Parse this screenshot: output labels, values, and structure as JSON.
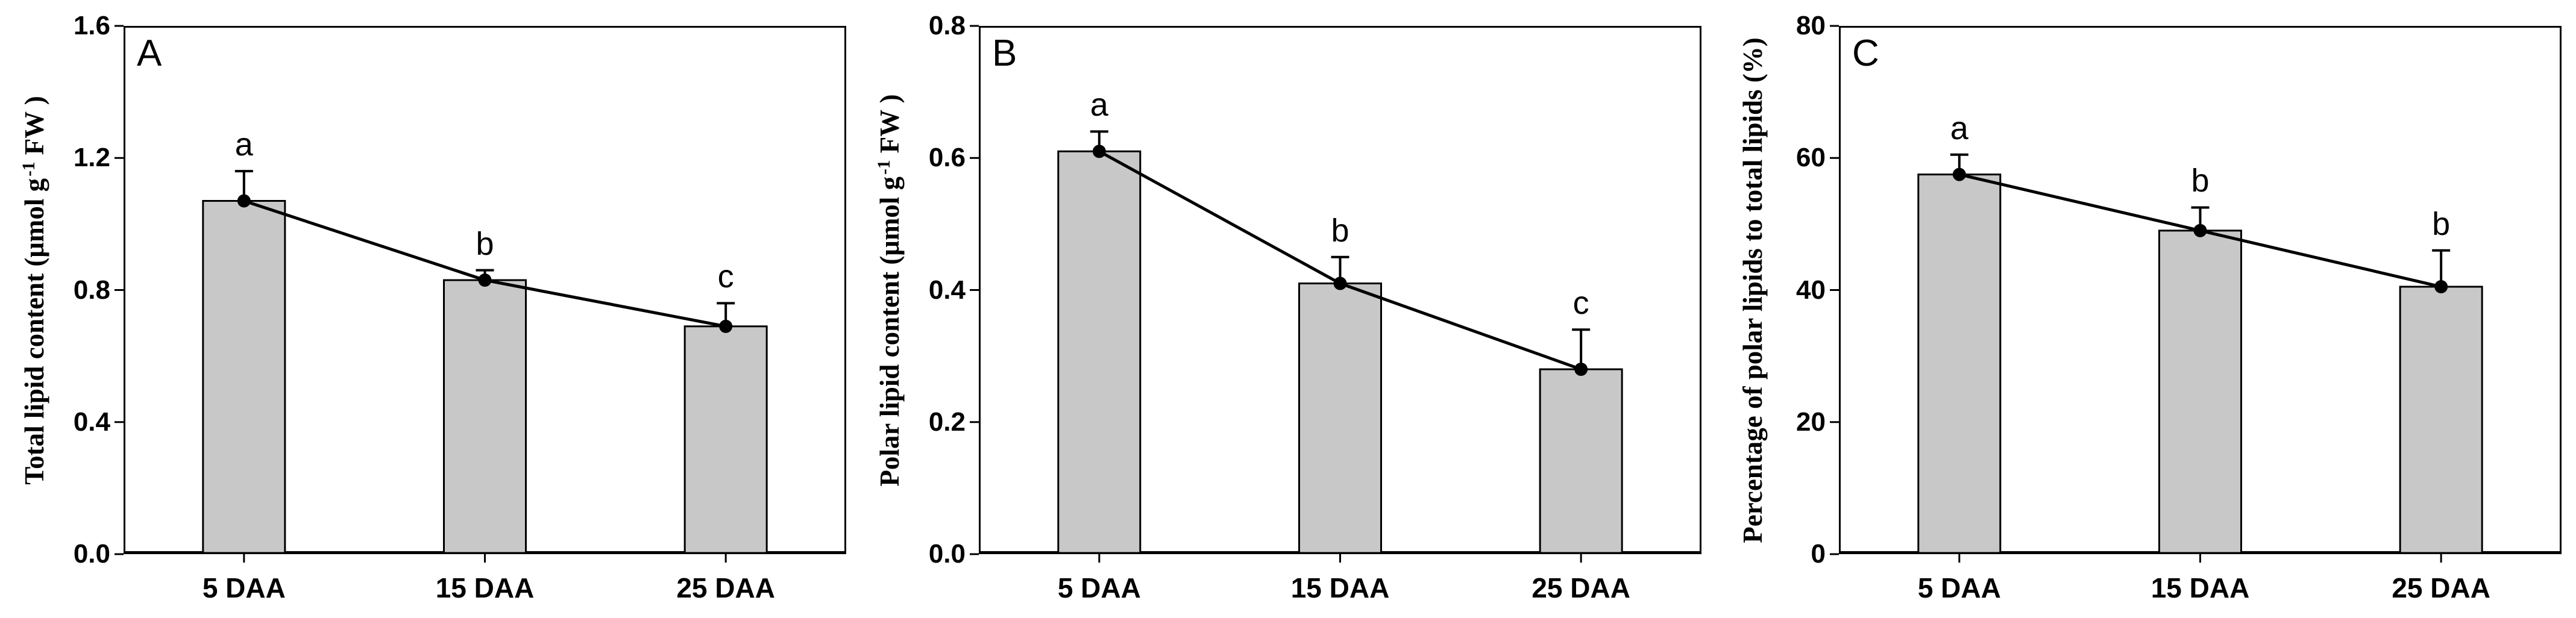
{
  "figure": {
    "background": "#ffffff",
    "bar_fill": "#c8c8c8",
    "bar_border": "#000000",
    "line_color": "#000000",
    "marker_color": "#000000",
    "text_color": "#000000"
  },
  "chart_data": [
    {
      "type": "bar",
      "panel_label": "A",
      "title": "",
      "xlabel": "",
      "ylabel": {
        "pre": "Total lipid content (μmol g",
        "sup": "-1",
        "post": " FW )"
      },
      "categories": [
        "5 DAA",
        "15 DAA",
        "25 DAA"
      ],
      "values": [
        1.07,
        0.83,
        0.69
      ],
      "errors_plus": [
        0.09,
        0.03,
        0.07
      ],
      "sig_letters": [
        "a",
        "b",
        "c"
      ],
      "ylim": [
        0,
        1.6
      ],
      "ytick_labels": [
        "0.0",
        "0.4",
        "0.8",
        "1.2",
        "1.6"
      ],
      "grid": false,
      "legend": "none",
      "overlay_line": true,
      "marker": "circle"
    },
    {
      "type": "bar",
      "panel_label": "B",
      "title": "",
      "xlabel": "",
      "ylabel": {
        "pre": "Polar lipid content (μmol g",
        "sup": "-1",
        "post": " FW )"
      },
      "categories": [
        "5 DAA",
        "15 DAA",
        "25 DAA"
      ],
      "values": [
        0.61,
        0.41,
        0.28
      ],
      "errors_plus": [
        0.03,
        0.04,
        0.06
      ],
      "sig_letters": [
        "a",
        "b",
        "c"
      ],
      "ylim": [
        0,
        0.8
      ],
      "ytick_labels": [
        "0.0",
        "0.2",
        "0.4",
        "0.6",
        "0.8"
      ],
      "grid": false,
      "legend": "none",
      "overlay_line": true,
      "marker": "circle"
    },
    {
      "type": "bar",
      "panel_label": "C",
      "title": "",
      "xlabel": "",
      "ylabel": {
        "pre": "Percentage of polar lipids to total lipids (%)",
        "sup": "",
        "post": ""
      },
      "categories": [
        "5 DAA",
        "15 DAA",
        "25 DAA"
      ],
      "values": [
        57.5,
        49.0,
        40.5
      ],
      "errors_plus": [
        3.0,
        3.5,
        5.5
      ],
      "sig_letters": [
        "a",
        "b",
        "b"
      ],
      "ylim": [
        0,
        80
      ],
      "ytick_labels": [
        "0",
        "20",
        "40",
        "60",
        "80"
      ],
      "grid": false,
      "legend": "none",
      "overlay_line": true,
      "marker": "circle"
    }
  ]
}
